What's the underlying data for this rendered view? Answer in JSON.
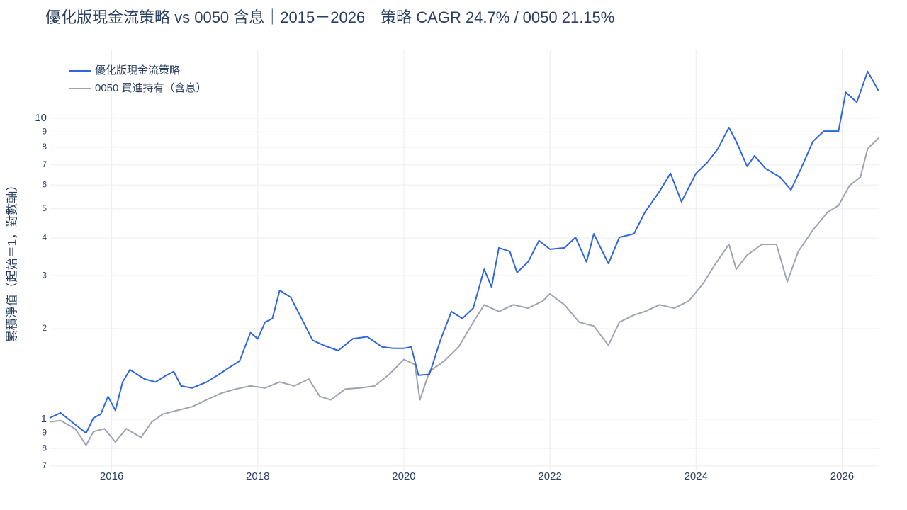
{
  "chart_data": {
    "type": "line",
    "title": "優化版現金流策略 vs 0050 含息｜2015－2026　策略 CAGR 24.7% / 0050 21.15%",
    "y_label": "累積淨值（起始＝1，對數軸）",
    "log_y": true,
    "grid": true,
    "legend": "top-left",
    "xlim": [
      2015.15,
      2026.5
    ],
    "xticks": [
      2016,
      2018,
      2020,
      2022,
      2024,
      2026
    ],
    "ylim": [
      0.673,
      16.9
    ],
    "yticks": [
      {
        "value": 0.7,
        "label": "7"
      },
      {
        "value": 0.8,
        "label": "8"
      },
      {
        "value": 0.9,
        "label": "9"
      },
      1,
      2,
      3,
      4,
      5,
      6,
      7,
      8,
      9,
      10
    ],
    "series": [
      {
        "name": "優化版現金流策略",
        "color": "#2f66e0",
        "x": [
          2015.15,
          2015.3,
          2015.5,
          2015.65,
          2015.75,
          2015.85,
          2015.95,
          2016.05,
          2016.15,
          2016.25,
          2016.45,
          2016.6,
          2016.75,
          2016.85,
          2016.95,
          2017.1,
          2017.3,
          2017.45,
          2017.6,
          2017.75,
          2017.9,
          2018.0,
          2018.1,
          2018.2,
          2018.3,
          2018.45,
          2018.6,
          2018.75,
          2018.9,
          2019.1,
          2019.3,
          2019.5,
          2019.7,
          2019.85,
          2020.0,
          2020.1,
          2020.2,
          2020.35,
          2020.5,
          2020.65,
          2020.8,
          2020.95,
          2021.1,
          2021.2,
          2021.3,
          2021.45,
          2021.55,
          2021.7,
          2021.85,
          2022.0,
          2022.2,
          2022.35,
          2022.5,
          2022.6,
          2022.8,
          2022.95,
          2023.15,
          2023.3,
          2023.5,
          2023.65,
          2023.8,
          2024.0,
          2024.15,
          2024.3,
          2024.45,
          2024.55,
          2024.7,
          2024.8,
          2024.95,
          2025.15,
          2025.3,
          2025.45,
          2025.6,
          2025.75,
          2025.95,
          2026.05,
          2026.2,
          2026.35,
          2026.5
        ],
        "values": [
          1.01,
          1.05,
          0.96,
          0.9,
          1.01,
          1.04,
          1.19,
          1.07,
          1.33,
          1.46,
          1.36,
          1.33,
          1.4,
          1.44,
          1.29,
          1.27,
          1.33,
          1.4,
          1.48,
          1.56,
          1.94,
          1.85,
          2.1,
          2.16,
          2.68,
          2.54,
          2.16,
          1.83,
          1.76,
          1.69,
          1.85,
          1.88,
          1.74,
          1.72,
          1.72,
          1.74,
          1.4,
          1.41,
          1.83,
          2.28,
          2.16,
          2.34,
          3.15,
          2.75,
          3.71,
          3.61,
          3.07,
          3.33,
          3.92,
          3.67,
          3.71,
          4.02,
          3.33,
          4.13,
          3.29,
          4.02,
          4.13,
          4.87,
          5.71,
          6.56,
          5.28,
          6.56,
          7.11,
          7.92,
          9.32,
          8.37,
          6.92,
          7.5,
          6.81,
          6.37,
          5.78,
          6.92,
          8.37,
          9.06,
          9.06,
          12.2,
          11.3,
          14.3,
          12.3
        ]
      },
      {
        "name": "0050 買進持有（含息）",
        "color": "#a0a4b0",
        "x": [
          2015.15,
          2015.3,
          2015.5,
          2015.65,
          2015.75,
          2015.9,
          2016.05,
          2016.2,
          2016.4,
          2016.55,
          2016.7,
          2016.9,
          2017.1,
          2017.3,
          2017.5,
          2017.7,
          2017.9,
          2018.1,
          2018.3,
          2018.5,
          2018.7,
          2018.85,
          2019.0,
          2019.2,
          2019.4,
          2019.6,
          2019.8,
          2020.0,
          2020.15,
          2020.22,
          2020.35,
          2020.55,
          2020.75,
          2020.95,
          2021.1,
          2021.3,
          2021.5,
          2021.7,
          2021.9,
          2022.0,
          2022.2,
          2022.4,
          2022.6,
          2022.8,
          2022.95,
          2023.15,
          2023.3,
          2023.5,
          2023.7,
          2023.9,
          2024.1,
          2024.25,
          2024.45,
          2024.55,
          2024.7,
          2024.9,
          2025.1,
          2025.25,
          2025.4,
          2025.6,
          2025.8,
          2025.95,
          2026.1,
          2026.25,
          2026.35,
          2026.5
        ],
        "values": [
          0.98,
          0.99,
          0.93,
          0.82,
          0.91,
          0.93,
          0.84,
          0.93,
          0.87,
          0.98,
          1.04,
          1.07,
          1.1,
          1.16,
          1.22,
          1.26,
          1.29,
          1.27,
          1.33,
          1.29,
          1.36,
          1.19,
          1.16,
          1.26,
          1.27,
          1.29,
          1.41,
          1.58,
          1.52,
          1.16,
          1.44,
          1.56,
          1.74,
          2.1,
          2.4,
          2.28,
          2.4,
          2.34,
          2.47,
          2.61,
          2.4,
          2.1,
          2.04,
          1.76,
          2.1,
          2.22,
          2.28,
          2.4,
          2.34,
          2.47,
          2.83,
          3.24,
          3.81,
          3.15,
          3.51,
          3.81,
          3.81,
          2.86,
          3.61,
          4.25,
          4.87,
          5.13,
          5.97,
          6.37,
          7.92,
          8.6
        ]
      }
    ]
  }
}
